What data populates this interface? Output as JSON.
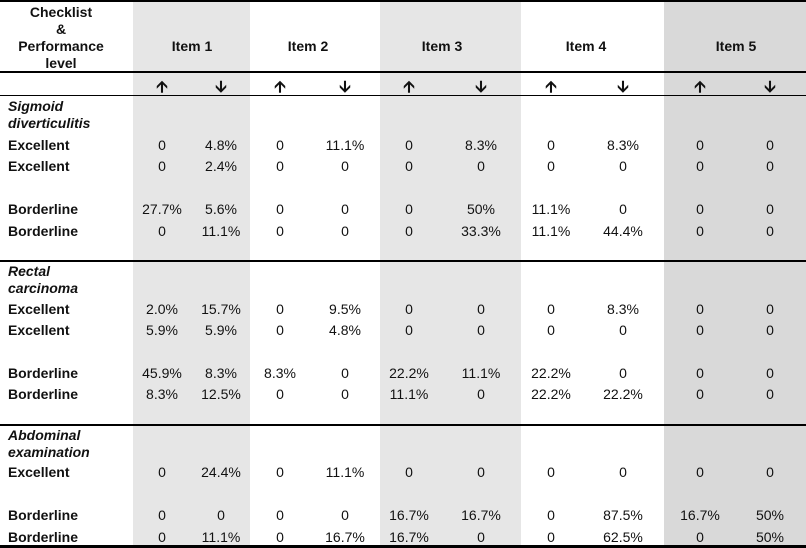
{
  "header": {
    "corner_label": "Checklist & Performance level",
    "corner_lines": [
      "Checklist",
      "&",
      "Performance",
      "level"
    ],
    "items": [
      "Item 1",
      "Item 2",
      "Item 3",
      "Item 4",
      "Item 5"
    ],
    "arrow_up": "🡩",
    "arrow_down": "🡫"
  },
  "band_colors": [
    "#e6e6e6",
    "#ffffff",
    "#e6e6e6",
    "#ffffff",
    "#d9d9d9"
  ],
  "sections": [
    {
      "title_lines": [
        "Sigmoid",
        "diverticulitis"
      ],
      "rows": [
        {
          "label": "Excellent",
          "values": [
            "0",
            "4.8%",
            "0",
            "11.1%",
            "0",
            "8.3%",
            "0",
            "8.3%",
            "0",
            "0"
          ]
        },
        {
          "label": "Excellent",
          "values": [
            "0",
            "2.4%",
            "0",
            "0",
            "0",
            "0",
            "0",
            "0",
            "0",
            "0"
          ]
        },
        {
          "label": "Borderline",
          "values": [
            "27.7%",
            "5.6%",
            "0",
            "0",
            "0",
            "50%",
            "11.1%",
            "0",
            "0",
            "0"
          ]
        },
        {
          "label": "Borderline",
          "values": [
            "0",
            "11.1%",
            "0",
            "0",
            "0",
            "33.3%",
            "11.1%",
            "44.4%",
            "0",
            "0"
          ]
        }
      ]
    },
    {
      "title_lines": [
        "Rectal",
        "carcinoma"
      ],
      "rows": [
        {
          "label": "Excellent",
          "values": [
            "2.0%",
            "15.7%",
            "0",
            "9.5%",
            "0",
            "0",
            "0",
            "8.3%",
            "0",
            "0"
          ]
        },
        {
          "label": "Excellent",
          "values": [
            "5.9%",
            "5.9%",
            "0",
            "4.8%",
            "0",
            "0",
            "0",
            "0",
            "0",
            "0"
          ]
        },
        {
          "label": "Borderline",
          "values": [
            "45.9%",
            "8.3%",
            "8.3%",
            "0",
            "22.2%",
            "11.1%",
            "22.2%",
            "0",
            "0",
            "0"
          ]
        },
        {
          "label": "Borderline",
          "values": [
            "8.3%",
            "12.5%",
            "0",
            "0",
            "11.1%",
            "0",
            "22.2%",
            "22.2%",
            "0",
            "0"
          ]
        }
      ]
    },
    {
      "title_lines": [
        "Abdominal",
        "examination"
      ],
      "rows": [
        {
          "label": "Excellent",
          "values": [
            "0",
            "24.4%",
            "0",
            "11.1%",
            "0",
            "0",
            "0",
            "0",
            "0",
            "0"
          ]
        },
        {
          "label": "Borderline",
          "values": [
            "0",
            "0",
            "0",
            "0",
            "16.7%",
            "16.7%",
            "0",
            "87.5%",
            "16.7%",
            "50%"
          ]
        },
        {
          "label": "Borderline",
          "values": [
            "0",
            "11.1%",
            "0",
            "16.7%",
            "16.7%",
            "0",
            "0",
            "62.5%",
            "0",
            "50%"
          ]
        }
      ]
    }
  ]
}
